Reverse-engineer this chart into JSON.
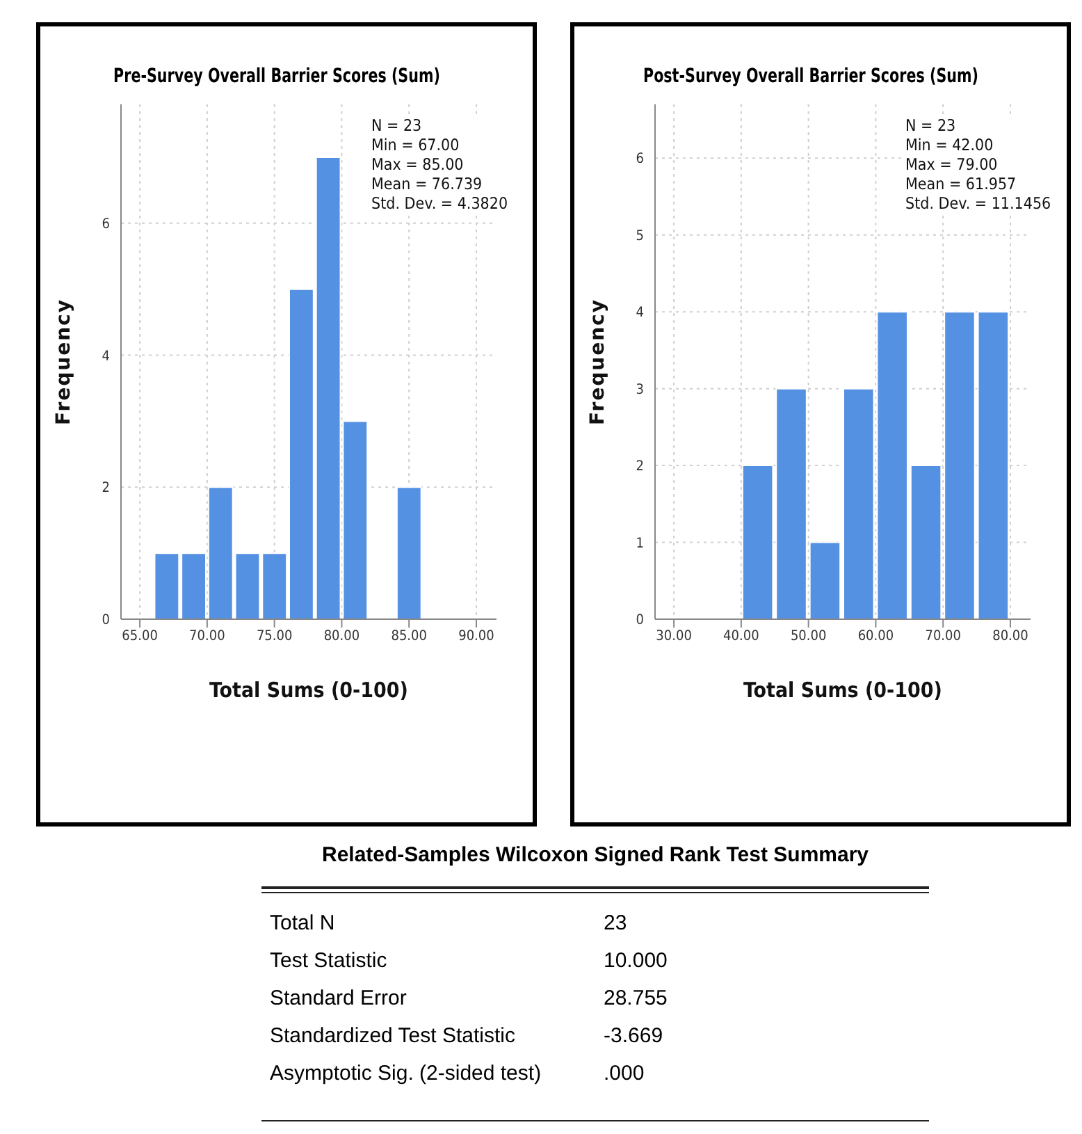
{
  "chart_data": [
    {
      "type": "histogram",
      "title": "Pre-Survey Overall Barrier Scores (Sum)",
      "xlabel": "Total Sums (0-100)",
      "ylabel": "Frequency",
      "bins": [
        66,
        68,
        70,
        72,
        74,
        76,
        78,
        80,
        82,
        84,
        86
      ],
      "values": [
        1,
        1,
        2,
        1,
        1,
        5,
        7,
        3,
        0,
        2
      ],
      "color": "#5591e3",
      "xlim": [
        63.6,
        91.5
      ],
      "xticks": [
        {
          "value": 65,
          "label": "65.00"
        },
        {
          "value": 70,
          "label": "70.00"
        },
        {
          "value": 75,
          "label": "75.00"
        },
        {
          "value": 80,
          "label": "80.00"
        },
        {
          "value": 85,
          "label": "85.00"
        },
        {
          "value": 90,
          "label": "90.00"
        }
      ],
      "ylim": [
        0,
        7.8
      ],
      "yticks": [
        0,
        2,
        4,
        6
      ],
      "grid": true,
      "annotations": [
        "N = 23",
        "Min = 67.00",
        "Max = 85.00",
        "Mean = 76.739",
        "Std. Dev. = 4.3820"
      ]
    },
    {
      "type": "histogram",
      "title": "Post-Survey Overall Barrier Scores (Sum)",
      "xlabel": "Total Sums (0-100)",
      "ylabel": "Frequency",
      "bins": [
        40,
        45,
        50,
        55,
        60,
        65,
        70,
        75,
        80
      ],
      "values": [
        2,
        3,
        1,
        3,
        4,
        2,
        4,
        4
      ],
      "color": "#5591e3",
      "xlim": [
        27.2,
        83
      ],
      "xticks": [
        {
          "value": 30,
          "label": "30.00"
        },
        {
          "value": 40,
          "label": "40.00"
        },
        {
          "value": 50,
          "label": "50.00"
        },
        {
          "value": 60,
          "label": "60.00"
        },
        {
          "value": 70,
          "label": "70.00"
        },
        {
          "value": 80,
          "label": "80.00"
        }
      ],
      "ylim": [
        0,
        6.7
      ],
      "yticks": [
        0,
        1,
        2,
        3,
        4,
        5,
        6
      ],
      "grid": true,
      "annotations": [
        "N = 23",
        "Min = 42.00",
        "Max = 79.00",
        "Mean = 61.957",
        "Std. Dev. = 11.1456"
      ]
    },
    {
      "type": "other",
      "title": "Related-Samples Wilcoxon Signed Rank Test Summary",
      "annotations": [
        "Total N",
        "23",
        "Test Statistic",
        "10.000",
        "Standard Error",
        "28.755",
        "Standardized Test Statistic",
        "-3.669",
        "Asymptotic Sig. (2-sided test)",
        ".000"
      ]
    }
  ]
}
